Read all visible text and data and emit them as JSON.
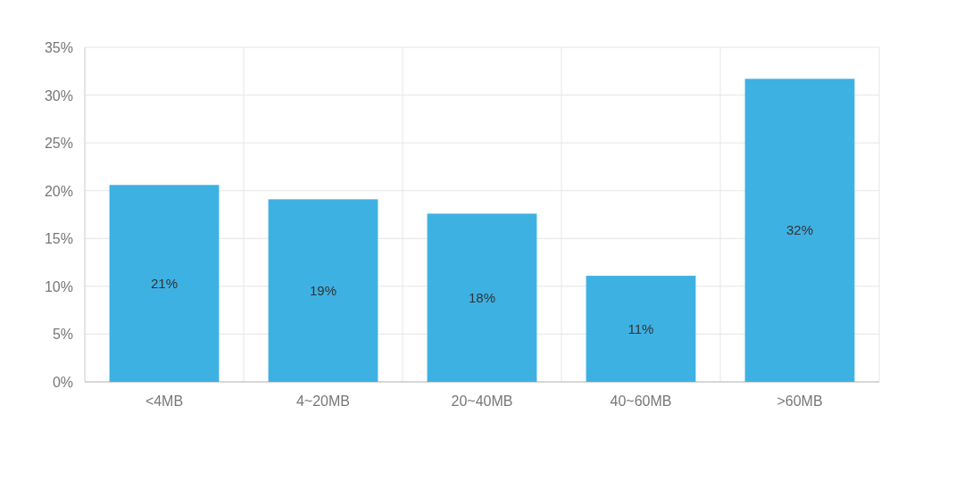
{
  "chart_data": {
    "type": "bar",
    "categories": [
      "<4MB",
      "4~20MB",
      "20~40MB",
      "40~60MB",
      ">60MB"
    ],
    "values": [
      20.6,
      19.1,
      17.6,
      11.1,
      31.7
    ],
    "value_labels": [
      "21%",
      "19%",
      "18%",
      "11%",
      "32%"
    ],
    "color": "#3eb1e3",
    "grid": true,
    "ylim": [
      0,
      35
    ],
    "yticks": [
      {
        "value": 0,
        "label": "0%"
      },
      {
        "value": 5,
        "label": "5%"
      },
      {
        "value": 10,
        "label": "10%"
      },
      {
        "value": 15,
        "label": "15%"
      },
      {
        "value": 20,
        "label": "20%"
      },
      {
        "value": 25,
        "label": "25%"
      },
      {
        "value": 30,
        "label": "30%"
      },
      {
        "value": 35,
        "label": "35%"
      }
    ]
  }
}
